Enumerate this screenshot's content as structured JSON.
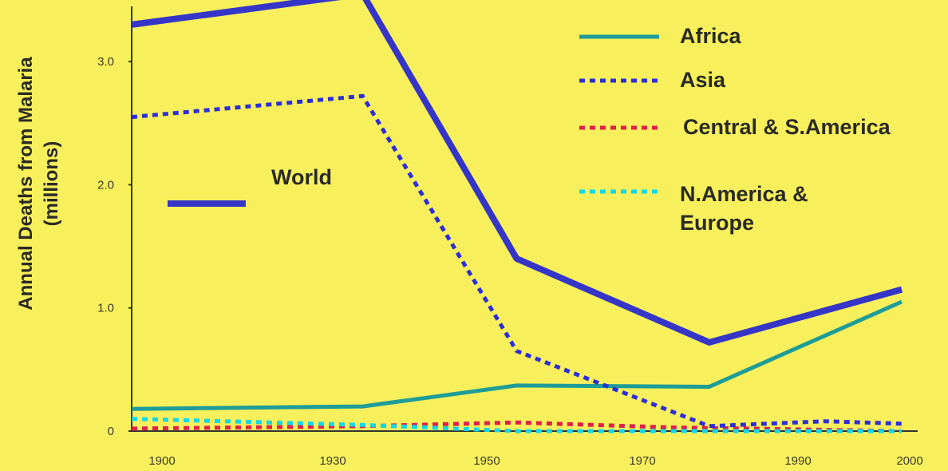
{
  "chart_data": {
    "type": "line",
    "title": "",
    "xlabel": "",
    "ylabel": "Annual Deaths from Malaria",
    "ylabel_units": "(millions)",
    "x_ticks": [
      "1900",
      "1930",
      "1950",
      "1970",
      "1990",
      "2000"
    ],
    "y_ticks": [
      {
        "value": 0,
        "label": "0"
      },
      {
        "value": 1,
        "label": "1.0"
      },
      {
        "value": 2,
        "label": "2.0"
      },
      {
        "value": 3,
        "label": "3.0"
      }
    ],
    "xlim": [
      1900,
      2000
    ],
    "ylim": [
      0,
      3.5
    ],
    "grid": false,
    "legend_position": "top-right",
    "series": [
      {
        "name": "World",
        "color": "#3535c8",
        "style": "solid-thick",
        "x": [
          1900,
          1930,
          1950,
          1975,
          2000
        ],
        "y": [
          3.3,
          3.55,
          1.4,
          0.72,
          1.15
        ]
      },
      {
        "name": "Africa",
        "color": "#1e9c98",
        "style": "solid",
        "x": [
          1900,
          1930,
          1950,
          1975,
          2000
        ],
        "y": [
          0.18,
          0.2,
          0.37,
          0.36,
          1.05
        ]
      },
      {
        "name": "Asia",
        "color": "#2e2ed8",
        "style": "dotted",
        "x": [
          1900,
          1930,
          1950,
          1975,
          1990,
          2000
        ],
        "y": [
          2.55,
          2.72,
          0.65,
          0.04,
          0.08,
          0.06
        ]
      },
      {
        "name": "Central & S.America",
        "color": "#e0204a",
        "style": "dotted",
        "x": [
          1900,
          1930,
          1950,
          1970,
          2000
        ],
        "y": [
          0.02,
          0.04,
          0.07,
          0.03,
          0.0
        ]
      },
      {
        "name": "N.America & Europe",
        "color": "#10d8e8",
        "style": "dotted",
        "x": [
          1900,
          1930,
          1950,
          1975,
          2000
        ],
        "y": [
          0.1,
          0.05,
          0.0,
          0.0,
          0.0
        ]
      }
    ]
  }
}
